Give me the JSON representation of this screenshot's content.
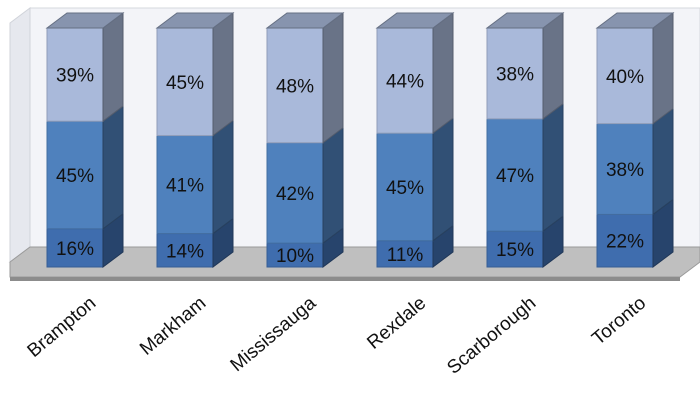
{
  "chart_data": {
    "type": "bar",
    "stacked": true,
    "percent_stacked": true,
    "three_d": true,
    "categories": [
      "Brampton",
      "Markham",
      "Mississauga",
      "Rexdale",
      "Scarborough",
      "Toronto"
    ],
    "series": [
      {
        "values": [
          16,
          14,
          10,
          11,
          15,
          22
        ],
        "labels": [
          "16%",
          "14%",
          "10%",
          "11%",
          "15%",
          "22%"
        ],
        "color": "#3F6DAE"
      },
      {
        "values": [
          45,
          41,
          42,
          45,
          47,
          38
        ],
        "labels": [
          "45%",
          "41%",
          "42%",
          "45%",
          "47%",
          "38%"
        ],
        "color": "#4F81BD"
      },
      {
        "values": [
          39,
          45,
          48,
          44,
          38,
          40
        ],
        "labels": [
          "39%",
          "45%",
          "48%",
          "44%",
          "38%",
          "40%"
        ],
        "color": "#A9B9DA"
      }
    ],
    "ylim": [
      0,
      100
    ],
    "legend": "none",
    "grid": false
  }
}
